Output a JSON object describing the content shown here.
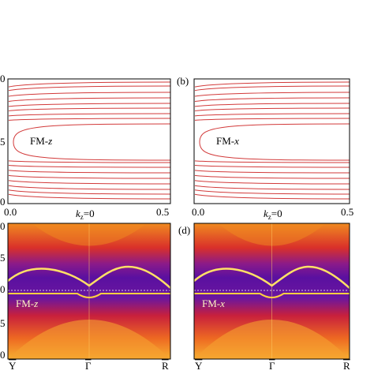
{
  "panel_a": {
    "y_tick_labels": [
      "0",
      "5",
      "0"
    ],
    "x_tick_labels": [
      "0.0",
      "0.5"
    ],
    "x_axis_label": "k",
    "x_axis_label_sub": "z",
    "x_axis_label_suffix": "=0",
    "annotation": "FM-",
    "annotation_italic": "z"
  },
  "panel_b": {
    "label": "(b)",
    "x_tick_labels": [
      "0.0",
      "0.5"
    ],
    "x_axis_label": "k",
    "x_axis_label_sub": "z",
    "x_axis_label_suffix": "=0",
    "annotation": "FM-",
    "annotation_italic": "x"
  },
  "panel_c": {
    "y_tick_labels": [
      "0",
      "5",
      "0",
      "5",
      "0"
    ],
    "x_tick_labels": [
      "Y",
      "Γ",
      "R"
    ],
    "annotation": "FM-",
    "annotation_italic": "z"
  },
  "panel_d": {
    "label": "(d)",
    "x_tick_labels": [
      "Y",
      "Γ",
      "R"
    ],
    "annotation": "FM-",
    "annotation_italic": "x"
  }
}
